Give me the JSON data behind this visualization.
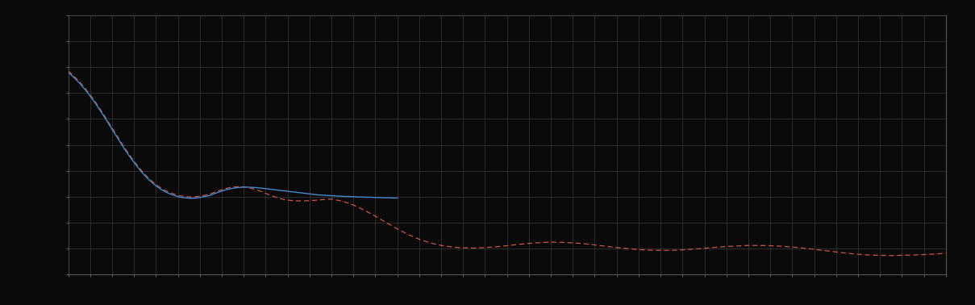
{
  "background_color": "#0a0a0a",
  "plot_bg_color": "#0a0a0a",
  "grid_color": "#3a3a3a",
  "figure_size": [
    12.09,
    3.78
  ],
  "dpi": 100,
  "spine_color": "#555555",
  "tick_color": "#888888",
  "xlim": [
    0,
    400
  ],
  "ylim": [
    0,
    10
  ],
  "n_xgrid": 40,
  "n_ygrid": 10,
  "blue_line_color": "#4488cc",
  "red_line_color": "#cc5544",
  "blue_x": [
    0,
    2,
    4,
    6,
    8,
    10,
    12,
    14,
    16,
    18,
    20,
    22,
    24,
    26,
    28,
    30,
    32,
    34,
    36,
    38,
    40,
    42,
    44,
    46,
    48,
    50,
    52,
    54,
    56,
    58,
    60,
    62,
    64,
    66,
    68,
    70,
    72,
    74,
    76,
    78,
    80,
    82,
    84,
    86,
    88,
    90,
    92,
    94,
    96,
    98,
    100,
    102,
    104,
    106,
    108,
    110,
    112,
    114,
    116,
    118,
    120,
    122,
    124,
    126,
    128,
    130,
    132,
    134,
    136,
    138,
    140,
    142,
    144,
    146,
    148,
    150
  ],
  "blue_y": [
    7.8,
    7.65,
    7.48,
    7.3,
    7.1,
    6.88,
    6.65,
    6.4,
    6.14,
    5.87,
    5.6,
    5.33,
    5.06,
    4.8,
    4.55,
    4.32,
    4.1,
    3.9,
    3.72,
    3.56,
    3.42,
    3.3,
    3.2,
    3.12,
    3.06,
    3.0,
    2.97,
    2.95,
    2.94,
    2.95,
    2.97,
    3.0,
    3.04,
    3.1,
    3.16,
    3.22,
    3.27,
    3.31,
    3.34,
    3.36,
    3.37,
    3.37,
    3.36,
    3.35,
    3.33,
    3.31,
    3.29,
    3.27,
    3.25,
    3.23,
    3.21,
    3.19,
    3.17,
    3.15,
    3.13,
    3.11,
    3.09,
    3.07,
    3.06,
    3.05,
    3.04,
    3.03,
    3.02,
    3.01,
    3.01,
    3.0,
    2.99,
    2.99,
    2.98,
    2.98,
    2.97,
    2.97,
    2.96,
    2.96,
    2.95,
    2.95
  ],
  "red_x": [
    0,
    2,
    4,
    6,
    8,
    10,
    12,
    14,
    16,
    18,
    20,
    22,
    24,
    26,
    28,
    30,
    32,
    34,
    36,
    38,
    40,
    42,
    44,
    46,
    48,
    50,
    52,
    54,
    56,
    58,
    60,
    62,
    64,
    66,
    68,
    70,
    72,
    74,
    76,
    78,
    80,
    82,
    84,
    86,
    88,
    90,
    92,
    94,
    96,
    98,
    100,
    102,
    104,
    106,
    108,
    110,
    112,
    114,
    116,
    118,
    120,
    125,
    130,
    135,
    140,
    145,
    150,
    155,
    160,
    165,
    170,
    175,
    180,
    185,
    190,
    195,
    200,
    205,
    210,
    215,
    220,
    225,
    230,
    235,
    240,
    245,
    250,
    255,
    260,
    265,
    270,
    275,
    280,
    285,
    290,
    295,
    300,
    305,
    310,
    315,
    320,
    325,
    330,
    335,
    340,
    345,
    350,
    355,
    360,
    365,
    370,
    375,
    380,
    385,
    390,
    395,
    400
  ],
  "red_y": [
    7.85,
    7.7,
    7.53,
    7.35,
    7.15,
    6.93,
    6.7,
    6.45,
    6.19,
    5.92,
    5.65,
    5.38,
    5.11,
    4.85,
    4.6,
    4.37,
    4.15,
    3.95,
    3.77,
    3.61,
    3.47,
    3.35,
    3.25,
    3.17,
    3.11,
    3.05,
    3.02,
    3.0,
    2.99,
    3.0,
    3.02,
    3.05,
    3.09,
    3.15,
    3.21,
    3.27,
    3.32,
    3.36,
    3.38,
    3.39,
    3.38,
    3.35,
    3.31,
    3.26,
    3.2,
    3.13,
    3.06,
    3.0,
    2.94,
    2.9,
    2.87,
    2.85,
    2.84,
    2.84,
    2.84,
    2.85,
    2.86,
    2.87,
    2.89,
    2.9,
    2.91,
    2.83,
    2.68,
    2.48,
    2.25,
    2.0,
    1.76,
    1.54,
    1.36,
    1.22,
    1.12,
    1.06,
    1.03,
    1.02,
    1.04,
    1.07,
    1.11,
    1.16,
    1.2,
    1.23,
    1.25,
    1.24,
    1.22,
    1.19,
    1.14,
    1.09,
    1.04,
    1.0,
    0.96,
    0.94,
    0.93,
    0.93,
    0.95,
    0.98,
    1.01,
    1.05,
    1.08,
    1.1,
    1.12,
    1.12,
    1.11,
    1.09,
    1.06,
    1.02,
    0.97,
    0.92,
    0.87,
    0.82,
    0.78,
    0.75,
    0.74,
    0.73,
    0.74,
    0.75,
    0.77,
    0.79,
    0.82
  ]
}
